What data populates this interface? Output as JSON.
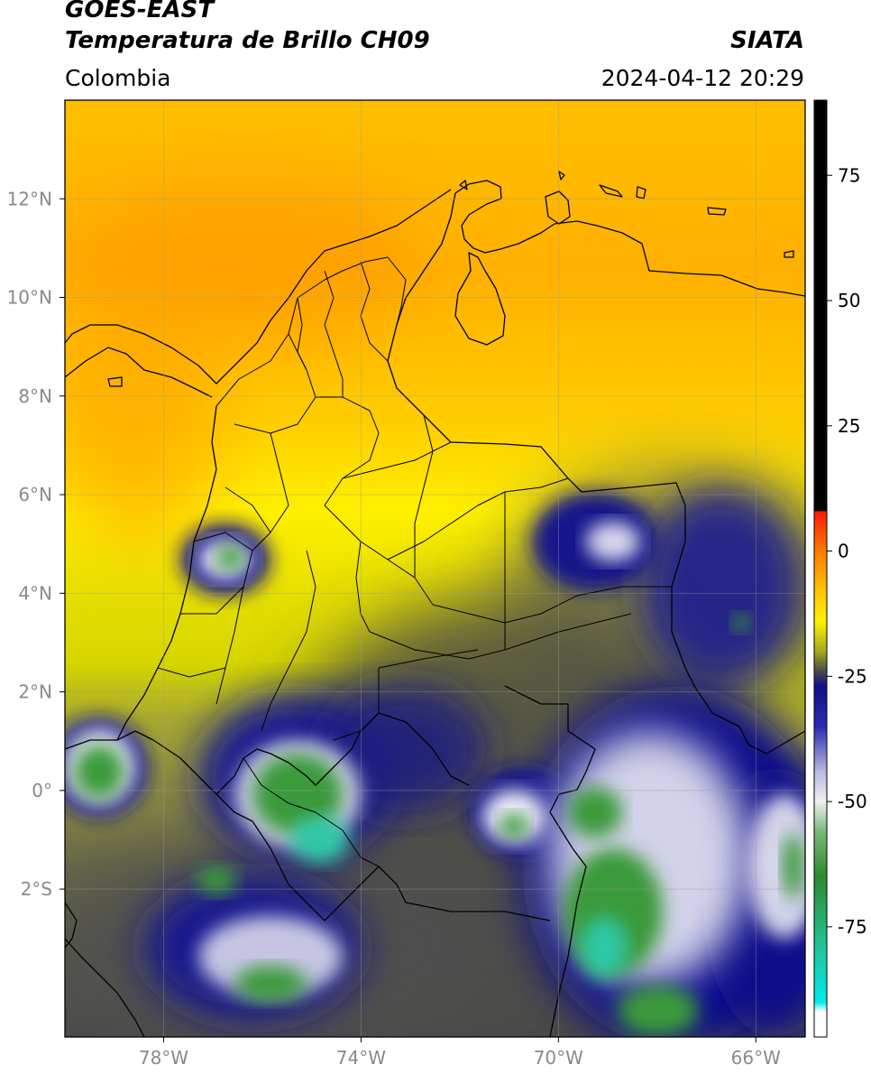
{
  "header": {
    "title_line1": "GOES-EAST",
    "title_line2": "Temperatura de Brillo CH09",
    "subtitle": "Colombia",
    "agency": "SIATA",
    "timestamp": "2024-04-12 20:29"
  },
  "map": {
    "lon_range": [
      -80,
      -65
    ],
    "lat_range": [
      -5,
      14
    ],
    "x_ticks": [
      {
        "lon": -78,
        "label": "78°W"
      },
      {
        "lon": -74,
        "label": "74°W"
      },
      {
        "lon": -70,
        "label": "70°W"
      },
      {
        "lon": -66,
        "label": "66°W"
      }
    ],
    "y_ticks": [
      {
        "lat": 12,
        "label": "12°N"
      },
      {
        "lat": 10,
        "label": "10°N"
      },
      {
        "lat": 8,
        "label": "8°N"
      },
      {
        "lat": 6,
        "label": "6°N"
      },
      {
        "lat": 4,
        "label": "4°N"
      },
      {
        "lat": 2,
        "label": "2°N"
      },
      {
        "lat": 0,
        "label": "0°"
      },
      {
        "lat": -2,
        "label": "2°S"
      }
    ]
  },
  "colorbar": {
    "range": [
      -97,
      90
    ],
    "ticks": [
      {
        "value": 75,
        "label": "75"
      },
      {
        "value": 50,
        "label": "50"
      },
      {
        "value": 25,
        "label": "25"
      },
      {
        "value": 0,
        "label": "0"
      },
      {
        "value": -25,
        "label": "-25"
      },
      {
        "value": -50,
        "label": "-50"
      },
      {
        "value": -75,
        "label": "-75"
      }
    ],
    "stops": [
      {
        "value": 90,
        "color": "#000000"
      },
      {
        "value": 8,
        "color": "#000000"
      },
      {
        "value": 7.9,
        "color": "#ff1a00"
      },
      {
        "value": 0,
        "color": "#ff7a00"
      },
      {
        "value": -8,
        "color": "#ffc400"
      },
      {
        "value": -14,
        "color": "#fff200"
      },
      {
        "value": -20,
        "color": "#a8a820"
      },
      {
        "value": -24,
        "color": "#4a4a4a"
      },
      {
        "value": -27,
        "color": "#10108a"
      },
      {
        "value": -35,
        "color": "#2a2ab0"
      },
      {
        "value": -44,
        "color": "#b8b8e0"
      },
      {
        "value": -50,
        "color": "#f0f0f0"
      },
      {
        "value": -56,
        "color": "#7ab87a"
      },
      {
        "value": -65,
        "color": "#2e8a2e"
      },
      {
        "value": -80,
        "color": "#20c8a0"
      },
      {
        "value": -90,
        "color": "#00e8e8"
      },
      {
        "value": -92,
        "color": "#ffffff"
      },
      {
        "value": -97,
        "color": "#ffffff"
      }
    ]
  }
}
